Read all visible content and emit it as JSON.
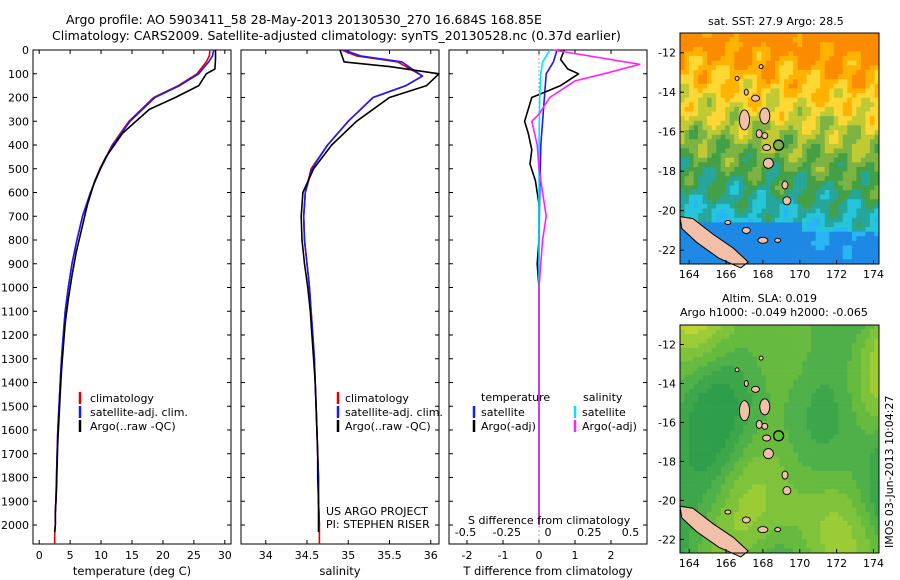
{
  "header": {
    "line1": "Argo profile: AO 5903411_58 28-May-2013 20130530_270 16.684S 168.85E",
    "line2": "Climatology: CARS2009. Satellite-adjusted climatology: synTS_20130528.nc (0.37d earlier)"
  },
  "credit": {
    "project": "US ARGO PROJECT",
    "pi": "PI: STEPHEN RISER",
    "stamp": "IMOS 03-Jun-2013 10:04:27"
  },
  "colors": {
    "climatology": "#e00000",
    "satellite": "#1a1aff",
    "argo": "#000000",
    "salinity_satellite": "#00e5ff",
    "salinity_argo": "#ff20ff",
    "land": "#f2c0a8"
  },
  "maps": {
    "sst": {
      "title": "sat. SST: 27.9 Argo: 28.5",
      "xticks": [
        164,
        166,
        168,
        170,
        172,
        174
      ],
      "yticks": [
        -12,
        -14,
        -16,
        -18,
        -20,
        -22
      ],
      "xlim": [
        163.5,
        174.3
      ],
      "ylim": [
        -22.7,
        -11.0
      ]
    },
    "sla": {
      "title1": "Altim. SLA: 0.019",
      "title2": "Argo h1000: -0.049 h2000: -0.065",
      "xticks": [
        164,
        166,
        168,
        170,
        172,
        174
      ],
      "yticks": [
        -12,
        -14,
        -16,
        -18,
        -20,
        -22
      ],
      "xlim": [
        163.5,
        174.3
      ],
      "ylim": [
        -22.7,
        -11.0
      ]
    },
    "argo_position": {
      "lon": 168.85,
      "lat": -16.684
    }
  },
  "chart_data": [
    {
      "type": "line",
      "xlabel": "temperature (deg C)",
      "xlim": [
        -1,
        31
      ],
      "ylim": [
        2080,
        0
      ],
      "xticks": [
        0,
        5,
        10,
        15,
        20,
        25,
        30
      ],
      "yticks": [
        0,
        100,
        200,
        300,
        400,
        500,
        600,
        700,
        800,
        900,
        1000,
        1100,
        1200,
        1300,
        1400,
        1500,
        1600,
        1700,
        1800,
        1900,
        2000
      ],
      "legend": [
        "climatology",
        "satellite-adj. clim.",
        "Argo(..raw -QC)"
      ],
      "series": [
        {
          "name": "climatology",
          "color": "#e00000",
          "x": [
            27.6,
            27.5,
            27.0,
            25.5,
            22.5,
            18.5,
            14.5,
            11.8,
            9.8,
            8.3,
            7.0,
            6.1,
            5.3,
            4.7,
            4.2,
            3.9,
            3.6,
            3.4,
            3.2,
            3.0,
            2.9,
            2.8,
            2.7,
            2.6,
            2.6,
            2.5,
            2.5
          ],
          "y": [
            0,
            25,
            50,
            100,
            150,
            200,
            300,
            400,
            500,
            600,
            700,
            800,
            900,
            1000,
            1100,
            1200,
            1300,
            1400,
            1500,
            1600,
            1700,
            1800,
            1900,
            1950,
            2000,
            2040,
            2080
          ]
        },
        {
          "name": "satellite-adj. clim.",
          "color": "#1a1aff",
          "x": [
            28.2,
            28.0,
            27.4,
            25.8,
            22.7,
            18.7,
            14.7,
            11.9,
            9.9,
            8.3,
            7.0,
            6.1,
            5.3,
            4.7,
            4.2,
            3.9,
            3.6,
            3.4,
            3.2,
            3.0,
            2.9,
            2.8,
            2.7,
            2.6,
            2.6
          ],
          "y": [
            0,
            25,
            50,
            100,
            150,
            200,
            300,
            400,
            500,
            600,
            700,
            800,
            900,
            1000,
            1100,
            1200,
            1300,
            1400,
            1500,
            1600,
            1700,
            1800,
            1900,
            1950,
            2000
          ]
        },
        {
          "name": "Argo(..raw -QC)",
          "color": "#000000",
          "x": [
            28.5,
            28.5,
            28.4,
            27.0,
            25.8,
            22.0,
            17.8,
            13.5,
            10.8,
            9.0,
            7.8,
            6.9,
            6.0,
            5.3,
            4.7,
            4.2,
            3.9,
            3.6,
            3.4,
            3.2,
            3.0,
            2.9,
            2.8,
            2.7,
            2.6,
            2.6,
            2.5
          ],
          "y": [
            0,
            40,
            80,
            100,
            150,
            200,
            250,
            350,
            450,
            550,
            650,
            750,
            850,
            950,
            1050,
            1150,
            1250,
            1350,
            1450,
            1550,
            1650,
            1750,
            1850,
            1900,
            1950,
            2000,
            2030
          ]
        }
      ]
    },
    {
      "type": "line",
      "xlabel": "salinity",
      "xlim": [
        33.7,
        36.1
      ],
      "ylim": [
        2080,
        0
      ],
      "xticks": [
        34,
        34.5,
        35,
        35.5,
        36
      ],
      "legend": [
        "climatology",
        "satellite-adj. clim.",
        "Argo(..raw -QC)"
      ],
      "series": [
        {
          "name": "climatology",
          "color": "#e00000",
          "x": [
            34.92,
            35.1,
            35.6,
            35.9,
            35.7,
            35.3,
            35.0,
            34.75,
            34.55,
            34.48,
            34.46,
            34.47,
            34.5,
            34.53,
            34.55,
            34.57,
            34.59,
            34.6,
            34.61,
            34.62,
            34.63,
            34.64,
            34.64,
            34.65,
            34.65
          ],
          "y": [
            0,
            25,
            50,
            110,
            150,
            200,
            300,
            400,
            500,
            600,
            700,
            800,
            900,
            1000,
            1100,
            1200,
            1300,
            1400,
            1500,
            1600,
            1700,
            1800,
            1900,
            2000,
            2080
          ]
        },
        {
          "name": "satellite-adj. clim.",
          "color": "#1a1aff",
          "x": [
            34.95,
            35.15,
            35.65,
            35.9,
            35.7,
            35.3,
            35.0,
            34.75,
            34.56,
            34.48,
            34.46,
            34.47,
            34.5,
            34.53,
            34.55,
            34.57,
            34.59,
            34.6,
            34.61,
            34.62,
            34.63,
            34.64,
            34.64,
            34.65
          ],
          "y": [
            0,
            25,
            50,
            110,
            150,
            200,
            300,
            400,
            500,
            600,
            700,
            800,
            900,
            1000,
            1100,
            1200,
            1300,
            1400,
            1500,
            1600,
            1700,
            1800,
            1900,
            2000
          ]
        },
        {
          "name": "Argo(..raw -QC)",
          "color": "#000000",
          "x": [
            34.9,
            34.95,
            35.5,
            36.1,
            35.95,
            35.5,
            35.1,
            34.8,
            34.58,
            34.45,
            34.43,
            34.44,
            34.47,
            34.51,
            34.54,
            34.56,
            34.58,
            34.6,
            34.61,
            34.62,
            34.63,
            34.63,
            34.64,
            34.64,
            34.64
          ],
          "y": [
            0,
            50,
            70,
            100,
            150,
            200,
            300,
            400,
            500,
            600,
            700,
            800,
            900,
            1000,
            1100,
            1200,
            1300,
            1400,
            1500,
            1600,
            1700,
            1800,
            1900,
            2000,
            2030
          ]
        }
      ]
    },
    {
      "type": "line",
      "xlabel": "T difference from climatology",
      "xlabel2": "S difference from climatology",
      "xlim": [
        -2.5,
        3.0
      ],
      "ylim": [
        2080,
        0
      ],
      "xticks": [
        -2,
        -1,
        0,
        1,
        2
      ],
      "xticks_top": [
        -0.5,
        -0.25,
        0,
        0.25,
        0.5
      ],
      "legend_temperature": {
        "heading": "temperature",
        "entries": [
          "satellite",
          "Argo(-adj)"
        ]
      },
      "legend_salinity": {
        "heading": "salinity",
        "entries": [
          "satellite",
          "Argo(-adj)"
        ]
      },
      "series": [
        {
          "name": "satellite",
          "color": "#1a1aff",
          "x": [
            0.5,
            0.4,
            0.2,
            0.15,
            0.1,
            0.05,
            0.02,
            0.0,
            0.0,
            0.0,
            0.0
          ],
          "y": [
            0,
            50,
            100,
            200,
            300,
            400,
            600,
            800,
            1200,
            1600,
            2000
          ]
        },
        {
          "name": "Argo(-adj)",
          "color": "#000000",
          "x": [
            0.7,
            0.6,
            0.8,
            1.1,
            0.6,
            -0.2,
            -0.4,
            -0.3,
            -0.2,
            -0.25,
            -0.1,
            0.0,
            0.0,
            -0.05,
            0.0,
            0.0,
            0.0,
            0.0,
            0.0
          ],
          "y": [
            0,
            40,
            80,
            100,
            150,
            200,
            300,
            350,
            420,
            480,
            550,
            650,
            800,
            900,
            1000,
            1200,
            1500,
            1800,
            2000
          ]
        },
        {
          "name": "satellite",
          "color": "#00e5ff",
          "x": [
            0.3,
            0.1,
            0.05,
            0.02,
            0.0,
            0.0,
            0.0,
            0.0
          ],
          "y": [
            0,
            50,
            100,
            200,
            400,
            800,
            1200,
            2000
          ]
        },
        {
          "name": "Argo(-adj)",
          "color": "#ff20ff",
          "x": [
            0.4,
            2.8,
            1.8,
            1.0,
            0.3,
            0.0,
            -0.2,
            -0.05,
            0.0,
            0.1,
            0.2,
            0.1,
            0.0,
            0.0,
            0.0
          ],
          "y": [
            0,
            60,
            100,
            130,
            200,
            270,
            300,
            400,
            500,
            600,
            700,
            800,
            1000,
            1500,
            2000
          ]
        }
      ]
    }
  ]
}
